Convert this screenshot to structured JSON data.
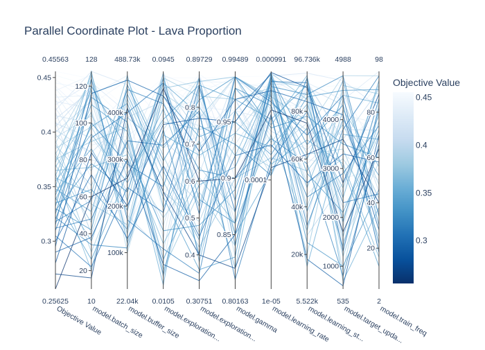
{
  "chart_data": {
    "type": "parallel_coordinates",
    "title": "Parallel Coordinate Plot - Lava Proportion",
    "colorbar": {
      "title": "Objective Value",
      "range": [
        0.255,
        0.4556
      ],
      "ticks": [
        0.3,
        0.35,
        0.4,
        0.45
      ],
      "tick_labels": [
        "0.3",
        "0.35",
        "0.4",
        "0.45"
      ],
      "colors": [
        "#08306b",
        "#08519c",
        "#2171b5",
        "#4292c6",
        "#6baed6",
        "#9ecae1",
        "#c6dbef",
        "#deebf7",
        "#f7fbff"
      ]
    },
    "dimensions": [
      {
        "label": "Objective Value",
        "min": 0.25625,
        "max": 0.45563,
        "min_label": "0.25625",
        "max_label": "0.45563",
        "scale": "linear",
        "ticks": [
          0.3,
          0.35,
          0.4,
          0.45
        ],
        "tick_labels": [
          "0.3",
          "0.35",
          "0.4",
          "0.45"
        ]
      },
      {
        "label": "model.batch_size",
        "min": 10,
        "max": 128,
        "min_label": "10",
        "max_label": "128",
        "scale": "linear",
        "ticks": [
          20,
          40,
          60,
          80,
          100,
          120
        ],
        "tick_labels": [
          "20",
          "40",
          "60",
          "80",
          "100",
          "120"
        ]
      },
      {
        "label": "model.buffer_size",
        "min": 22040,
        "max": 488730,
        "min_label": "22.04k",
        "max_label": "488.73k",
        "scale": "linear",
        "ticks": [
          100000,
          200000,
          300000,
          400000
        ],
        "tick_labels": [
          "100k",
          "200k",
          "300k",
          "400k"
        ]
      },
      {
        "label": "model.exploration...",
        "min": 0.0105,
        "max": 0.0945,
        "min_label": "0.0105",
        "max_label": "0.0945",
        "scale": "linear",
        "ticks": [],
        "tick_labels": []
      },
      {
        "label": "model.exploration...",
        "min": 0.30751,
        "max": 0.89729,
        "min_label": "0.30751",
        "max_label": "0.89729",
        "scale": "linear",
        "ticks": [
          0.4,
          0.5,
          0.6,
          0.7,
          0.8
        ],
        "tick_labels": [
          "0.4",
          "0.5",
          "0.6",
          "0.7",
          "0.8"
        ]
      },
      {
        "label": "model.gamma",
        "min": 0.80163,
        "max": 0.99489,
        "min_label": "0.80163",
        "max_label": "0.99489",
        "scale": "linear",
        "ticks": [
          0.85,
          0.9,
          0.95
        ],
        "tick_labels": [
          "0.85",
          "0.9",
          "0.95"
        ]
      },
      {
        "label": "model.learning_rate",
        "min": 1e-05,
        "max": 0.000991,
        "min_label": "1e-05",
        "max_label": "0.000991",
        "scale": "log",
        "ticks": [
          0.0001
        ],
        "tick_labels": [
          "0.0001"
        ]
      },
      {
        "label": "model.learning_st...",
        "min": 5522,
        "max": 96736,
        "min_label": "5.522k",
        "max_label": "96.736k",
        "scale": "linear",
        "ticks": [
          20000,
          40000,
          60000,
          80000
        ],
        "tick_labels": [
          "20k",
          "40k",
          "60k",
          "80k"
        ]
      },
      {
        "label": "model.target_upda...",
        "min": 535,
        "max": 4988,
        "min_label": "535",
        "max_label": "4988",
        "scale": "linear",
        "ticks": [
          1000,
          2000,
          3000,
          4000
        ],
        "tick_labels": [
          "1000",
          "2000",
          "3000",
          "4000"
        ]
      },
      {
        "label": "model.train_freq",
        "min": 2,
        "max": 98,
        "min_label": "2",
        "max_label": "98",
        "scale": "linear",
        "ticks": [
          20,
          40,
          60,
          80
        ],
        "tick_labels": [
          "20",
          "40",
          "60",
          "80"
        ]
      }
    ],
    "records": [
      [
        0.4556,
        124,
        410000,
        0.092,
        0.88,
        0.99,
        0.0009,
        95000,
        4900,
        96
      ],
      [
        0.452,
        120,
        380000,
        0.085,
        0.86,
        0.98,
        0.0008,
        90000,
        4700,
        90
      ],
      [
        0.448,
        110,
        470000,
        0.075,
        0.89,
        0.97,
        0.0006,
        88000,
        4500,
        85
      ],
      [
        0.445,
        118,
        300000,
        0.06,
        0.84,
        0.99,
        0.0005,
        82000,
        4200,
        70
      ],
      [
        0.442,
        102,
        260000,
        0.09,
        0.8,
        0.96,
        0.00095,
        70000,
        3900,
        92
      ],
      [
        0.44,
        96,
        440000,
        0.05,
        0.78,
        0.95,
        0.0003,
        65000,
        4600,
        60
      ],
      [
        0.438,
        126,
        220000,
        0.07,
        0.87,
        0.985,
        0.0007,
        93000,
        3500,
        80
      ],
      [
        0.435,
        88,
        350000,
        0.08,
        0.82,
        0.92,
        0.0004,
        77000,
        4100,
        75
      ],
      [
        0.432,
        115,
        480000,
        0.04,
        0.76,
        0.99,
        0.0002,
        60000,
        3000,
        88
      ],
      [
        0.43,
        70,
        320000,
        0.093,
        0.85,
        0.94,
        0.00085,
        85000,
        2800,
        55
      ],
      [
        0.428,
        108,
        150000,
        0.065,
        0.72,
        0.97,
        0.00012,
        92000,
        4400,
        98
      ],
      [
        0.425,
        122,
        400000,
        0.03,
        0.89,
        0.9,
        0.0006,
        52000,
        4000,
        40
      ],
      [
        0.422,
        80,
        280000,
        0.087,
        0.7,
        0.96,
        0.00035,
        71000,
        3700,
        66
      ],
      [
        0.42,
        128,
        460000,
        0.055,
        0.81,
        0.88,
        0.0009,
        96000,
        4800,
        82
      ],
      [
        0.418,
        60,
        200000,
        0.078,
        0.75,
        0.99,
        0.00025,
        45000,
        3300,
        50
      ],
      [
        0.415,
        100,
        360000,
        0.02,
        0.88,
        0.93,
        0.00065,
        80000,
        2500,
        94
      ],
      [
        0.412,
        118,
        120000,
        0.094,
        0.66,
        0.97,
        0.00015,
        90000,
        4300,
        30
      ],
      [
        0.41,
        50,
        420000,
        0.045,
        0.83,
        0.86,
        0.0008,
        58000,
        3800,
        72
      ],
      [
        0.408,
        92,
        250000,
        0.068,
        0.62,
        0.99,
        0.00045,
        88000,
        1800,
        86
      ],
      [
        0.405,
        120,
        330000,
        0.035,
        0.79,
        0.91,
        0.00055,
        35000,
        4600,
        45
      ],
      [
        0.402,
        84,
        390000,
        0.083,
        0.58,
        0.95,
        0.00018,
        75000,
        2200,
        62
      ],
      [
        0.4,
        112,
        180000,
        0.025,
        0.86,
        0.83,
        0.00075,
        92000,
        3600,
        90
      ],
      [
        0.398,
        74,
        450000,
        0.058,
        0.54,
        0.98,
        0.00028,
        64000,
        4100,
        20
      ],
      [
        0.395,
        104,
        280000,
        0.09,
        0.73,
        0.89,
        0.00092,
        28000,
        2700,
        78
      ],
      [
        0.392,
        40,
        350000,
        0.015,
        0.69,
        0.96,
        0.00011,
        82000,
        1500,
        58
      ],
      [
        0.39,
        124,
        100000,
        0.072,
        0.88,
        0.85,
        0.0005,
        72000,
        4900,
        96
      ],
      [
        0.388,
        66,
        410000,
        0.048,
        0.49,
        0.94,
        0.00065,
        50000,
        3200,
        36
      ],
      [
        0.385,
        98,
        230000,
        0.086,
        0.77,
        0.99,
        0.00022,
        88000,
        900,
        84
      ],
      [
        0.382,
        30,
        300000,
        0.038,
        0.64,
        0.87,
        0.00085,
        40000,
        4400,
        48
      ],
      [
        0.38,
        116,
        470000,
        0.062,
        0.46,
        0.93,
        0.00013,
        94000,
        2000,
        70
      ],
      [
        0.378,
        56,
        160000,
        0.092,
        0.83,
        0.97,
        0.0007,
        62000,
        3400,
        25
      ],
      [
        0.375,
        90,
        370000,
        0.018,
        0.57,
        0.84,
        0.00038,
        20000,
        4700,
        88
      ],
      [
        0.372,
        126,
        260000,
        0.075,
        0.74,
        0.95,
        0.00095,
        85000,
        1200,
        64
      ],
      [
        0.37,
        46,
        430000,
        0.052,
        0.42,
        0.9,
        0.00016,
        55000,
        3900,
        42
      ],
      [
        0.368,
        106,
        140000,
        0.088,
        0.87,
        0.99,
        0.00058,
        76000,
        2600,
        92
      ],
      [
        0.365,
        76,
        310000,
        0.028,
        0.61,
        0.86,
        0.00026,
        30000,
        4200,
        56
      ],
      [
        0.362,
        20,
        390000,
        0.065,
        0.8,
        0.92,
        0.00082,
        90000,
        1600,
        76
      ],
      [
        0.36,
        118,
        210000,
        0.094,
        0.38,
        0.96,
        0.00014,
        68000,
        3100,
        16
      ],
      [
        0.358,
        62,
        480000,
        0.042,
        0.71,
        0.82,
        0.00068,
        48000,
        4500,
        84
      ],
      [
        0.355,
        94,
        250000,
        0.08,
        0.53,
        0.98,
        0.00032,
        95000,
        700,
        38
      ],
      [
        0.352,
        36,
        340000,
        0.012,
        0.85,
        0.88,
        0.0009,
        15000,
        3700,
        68
      ],
      [
        0.35,
        128,
        120000,
        0.07,
        0.67,
        0.94,
        0.0002,
        83000,
        2400,
        94
      ],
      [
        0.348,
        52,
        440000,
        0.056,
        0.44,
        0.99,
        0.00055,
        60000,
        4800,
        30
      ],
      [
        0.345,
        86,
        190000,
        0.09,
        0.78,
        0.85,
        0.00012,
        73000,
        1400,
        80
      ],
      [
        0.342,
        110,
        360000,
        0.022,
        0.59,
        0.91,
        0.00078,
        38000,
        4000,
        52
      ],
      [
        0.34,
        26,
        270000,
        0.076,
        0.86,
        0.97,
        0.00036,
        91000,
        3000,
        12
      ],
      [
        0.338,
        98,
        420000,
        0.046,
        0.36,
        0.83,
        0.00096,
        54000,
        2100,
        72
      ],
      [
        0.335,
        64,
        150000,
        0.085,
        0.72,
        0.95,
        0.00017,
        86000,
        4600,
        90
      ],
      [
        0.332,
        120,
        320000,
        0.033,
        0.48,
        0.89,
        0.00062,
        25000,
        1000,
        46
      ],
      [
        0.33,
        42,
        460000,
        0.06,
        0.82,
        0.99,
        0.0003,
        78000,
        3500,
        60
      ],
      [
        0.328,
        78,
        230000,
        0.092,
        0.55,
        0.86,
        0.00088,
        66000,
        4300,
        22
      ],
      [
        0.325,
        114,
        380000,
        0.016,
        0.75,
        0.93,
        0.00011,
        94000,
        1900,
        86
      ],
      [
        0.322,
        34,
        110000,
        0.072,
        0.4,
        0.98,
        0.00048,
        44000,
        2900,
        74
      ],
      [
        0.32,
        100,
        290000,
        0.05,
        0.88,
        0.84,
        0.00072,
        87000,
        4900,
        34
      ],
      [
        0.318,
        58,
        450000,
        0.082,
        0.63,
        0.9,
        0.00024,
        58000,
        800,
        66
      ],
      [
        0.315,
        124,
        170000,
        0.026,
        0.35,
        0.96,
        0.00093,
        32000,
        3800,
        96
      ],
      [
        0.312,
        48,
        340000,
        0.066,
        0.79,
        0.81,
        0.00015,
        80000,
        2300,
        44
      ],
      [
        0.31,
        92,
        400000,
        0.09,
        0.51,
        0.99,
        0.00052,
        70000,
        4500,
        18
      ],
      [
        0.305,
        22,
        240000,
        0.04,
        0.86,
        0.87,
        0.0008,
        92000,
        1300,
        82
      ],
      [
        0.3,
        72,
        130000,
        0.058,
        0.45,
        0.92,
        0.00021,
        50000,
        3300,
        58
      ],
      [
        0.295,
        116,
        470000,
        0.085,
        0.68,
        0.97,
        0.00066,
        84000,
        4100,
        28
      ],
      [
        0.29,
        38,
        300000,
        0.02,
        0.33,
        0.85,
        0.0004,
        18000,
        600,
        70
      ],
      [
        0.28,
        84,
        200000,
        0.074,
        0.77,
        0.95,
        0.00097,
        90000,
        2700,
        88
      ],
      [
        0.27,
        16,
        410000,
        0.048,
        0.4,
        0.82,
        0.00013,
        62000,
        3600,
        40
      ],
      [
        0.2563,
        60,
        260000,
        0.088,
        0.6,
        0.9,
        0.00044,
        75000,
        1700,
        64
      ]
    ]
  }
}
